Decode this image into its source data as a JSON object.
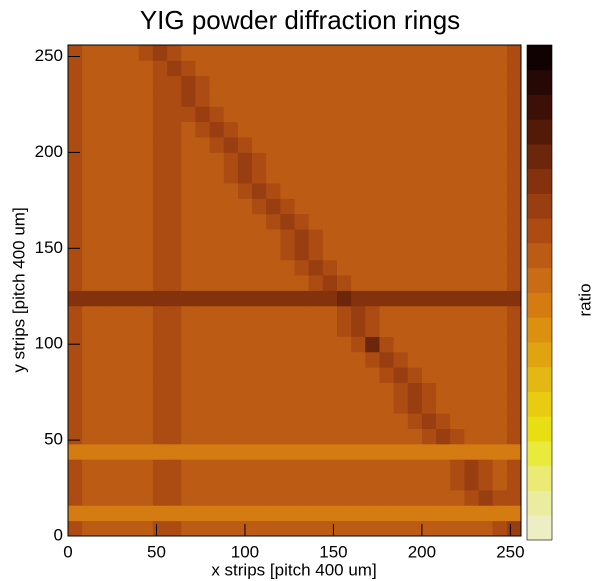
{
  "chart_data": {
    "type": "heatmap",
    "title": "YIG powder diffraction rings",
    "xlabel": "x strips [pitch 400 um]",
    "ylabel": "y strips [pitch 400 um]",
    "zlabel": "ratio",
    "xlim": [
      0,
      256
    ],
    "ylim": [
      0,
      256
    ],
    "xticks": [
      0,
      50,
      100,
      150,
      200,
      250
    ],
    "yticks": [
      0,
      50,
      100,
      150,
      200,
      250
    ],
    "xbins": [
      0,
      8,
      16,
      24,
      32,
      40,
      48,
      56,
      64,
      72,
      80,
      88,
      96,
      104,
      112,
      120,
      128,
      136,
      144,
      152,
      160,
      168,
      176,
      184,
      192,
      200,
      208,
      216,
      224,
      232,
      240,
      248,
      256
    ],
    "ybins": [
      0,
      8,
      16,
      24,
      32,
      40,
      48,
      56,
      64,
      72,
      80,
      88,
      96,
      104,
      112,
      120,
      128,
      136,
      144,
      152,
      160,
      168,
      176,
      184,
      192,
      200,
      208,
      216,
      224,
      232,
      240,
      248,
      256
    ],
    "colorscale": [
      "#eeeec4",
      "#ececa0",
      "#eaea74",
      "#eaea3c",
      "#e8de14",
      "#e8cc12",
      "#e4b812",
      "#e0a410",
      "#dc9010",
      "#d47c12",
      "#c86c16",
      "#bc5c14",
      "#ac4c12",
      "#983e10",
      "#84320e",
      "#6c260c",
      "#541a08",
      "#3c1006",
      "#260804",
      "#100202"
    ],
    "z": [
      [
        12,
        11,
        11,
        11,
        11,
        11,
        12,
        12,
        11,
        11,
        11,
        11,
        11,
        11,
        11,
        11,
        11,
        11,
        11,
        11,
        11,
        11,
        11,
        11,
        11,
        11,
        11,
        11,
        11,
        11,
        12,
        13
      ],
      [
        9,
        9,
        9,
        9,
        9,
        9,
        9,
        9,
        9,
        9,
        9,
        9,
        9,
        9,
        9,
        9,
        9,
        9,
        9,
        9,
        9,
        9,
        9,
        9,
        9,
        9,
        9,
        9,
        9,
        9,
        9,
        9
      ],
      [
        12,
        11,
        11,
        11,
        11,
        11,
        12,
        12,
        11,
        11,
        11,
        11,
        11,
        11,
        11,
        11,
        11,
        11,
        11,
        11,
        11,
        11,
        11,
        11,
        11,
        11,
        11,
        11,
        12,
        13,
        12,
        12
      ],
      [
        12,
        11,
        11,
        11,
        11,
        11,
        12,
        12,
        11,
        11,
        11,
        11,
        11,
        11,
        11,
        11,
        11,
        11,
        11,
        11,
        11,
        11,
        11,
        11,
        11,
        11,
        11,
        12,
        13,
        12,
        11,
        12
      ],
      [
        12,
        11,
        11,
        11,
        11,
        11,
        12,
        12,
        11,
        11,
        11,
        11,
        11,
        11,
        11,
        11,
        11,
        11,
        11,
        11,
        11,
        11,
        11,
        11,
        11,
        11,
        11,
        12,
        13,
        12,
        11,
        12
      ],
      [
        9,
        9,
        9,
        9,
        9,
        9,
        9,
        9,
        9,
        9,
        9,
        9,
        9,
        9,
        9,
        9,
        9,
        9,
        9,
        9,
        9,
        9,
        9,
        9,
        9,
        9,
        9,
        9,
        9,
        9,
        9,
        9
      ],
      [
        12,
        11,
        11,
        11,
        11,
        11,
        12,
        12,
        11,
        11,
        11,
        11,
        11,
        11,
        11,
        11,
        11,
        11,
        11,
        11,
        11,
        11,
        11,
        11,
        11,
        12,
        13,
        12,
        11,
        11,
        11,
        12
      ],
      [
        12,
        11,
        11,
        11,
        11,
        11,
        12,
        12,
        11,
        11,
        11,
        11,
        11,
        11,
        11,
        11,
        11,
        11,
        11,
        11,
        11,
        11,
        11,
        11,
        12,
        13,
        12,
        11,
        11,
        11,
        11,
        12
      ],
      [
        12,
        11,
        11,
        11,
        11,
        11,
        12,
        12,
        11,
        11,
        11,
        11,
        11,
        11,
        11,
        11,
        11,
        11,
        11,
        11,
        11,
        11,
        11,
        12,
        13,
        12,
        11,
        11,
        11,
        11,
        11,
        12
      ],
      [
        12,
        11,
        11,
        11,
        11,
        11,
        12,
        12,
        11,
        11,
        11,
        11,
        11,
        11,
        11,
        11,
        11,
        11,
        11,
        11,
        11,
        11,
        11,
        12,
        13,
        12,
        11,
        11,
        11,
        11,
        11,
        12
      ],
      [
        12,
        11,
        11,
        11,
        11,
        11,
        12,
        12,
        11,
        11,
        11,
        11,
        11,
        11,
        11,
        11,
        11,
        11,
        11,
        11,
        11,
        11,
        12,
        13,
        12,
        11,
        11,
        11,
        11,
        11,
        11,
        12
      ],
      [
        12,
        11,
        11,
        11,
        11,
        11,
        12,
        12,
        11,
        11,
        11,
        11,
        11,
        11,
        11,
        11,
        11,
        11,
        11,
        11,
        11,
        12,
        13,
        12,
        11,
        11,
        11,
        11,
        11,
        11,
        11,
        12
      ],
      [
        12,
        11,
        11,
        11,
        11,
        11,
        12,
        12,
        11,
        11,
        11,
        11,
        11,
        11,
        11,
        11,
        11,
        11,
        11,
        11,
        12,
        15,
        12,
        11,
        11,
        11,
        11,
        11,
        11,
        11,
        11,
        12
      ],
      [
        12,
        11,
        11,
        11,
        11,
        11,
        12,
        12,
        11,
        11,
        11,
        11,
        11,
        11,
        11,
        11,
        11,
        11,
        11,
        12,
        13,
        12,
        11,
        11,
        11,
        11,
        11,
        11,
        11,
        11,
        11,
        12
      ],
      [
        12,
        11,
        11,
        11,
        11,
        11,
        12,
        12,
        11,
        11,
        11,
        11,
        11,
        11,
        11,
        11,
        11,
        11,
        11,
        12,
        13,
        12,
        11,
        11,
        11,
        11,
        11,
        11,
        11,
        11,
        11,
        12
      ],
      [
        14,
        14,
        14,
        14,
        14,
        14,
        14,
        14,
        14,
        14,
        14,
        14,
        14,
        14,
        14,
        14,
        14,
        14,
        14,
        15,
        14,
        14,
        14,
        14,
        14,
        14,
        14,
        14,
        14,
        14,
        14,
        14
      ],
      [
        12,
        11,
        11,
        11,
        11,
        11,
        12,
        12,
        11,
        11,
        11,
        11,
        11,
        11,
        11,
        11,
        11,
        12,
        13,
        12,
        11,
        11,
        11,
        11,
        11,
        11,
        11,
        11,
        11,
        11,
        11,
        12
      ],
      [
        12,
        11,
        11,
        11,
        11,
        11,
        12,
        12,
        11,
        11,
        11,
        11,
        11,
        11,
        11,
        11,
        12,
        13,
        12,
        11,
        11,
        11,
        11,
        11,
        11,
        11,
        11,
        11,
        11,
        11,
        11,
        12
      ],
      [
        12,
        11,
        11,
        11,
        11,
        11,
        12,
        12,
        11,
        11,
        11,
        11,
        11,
        11,
        11,
        12,
        13,
        12,
        11,
        11,
        11,
        11,
        11,
        11,
        11,
        11,
        11,
        11,
        11,
        11,
        11,
        12
      ],
      [
        12,
        11,
        11,
        11,
        11,
        11,
        12,
        12,
        11,
        11,
        11,
        11,
        11,
        11,
        11,
        12,
        13,
        12,
        11,
        11,
        11,
        11,
        11,
        11,
        11,
        11,
        11,
        11,
        11,
        11,
        11,
        12
      ],
      [
        12,
        11,
        11,
        11,
        11,
        11,
        12,
        12,
        11,
        11,
        11,
        11,
        11,
        11,
        12,
        13,
        12,
        11,
        11,
        11,
        11,
        11,
        11,
        11,
        11,
        11,
        11,
        11,
        11,
        11,
        11,
        12
      ],
      [
        12,
        11,
        11,
        11,
        11,
        11,
        12,
        12,
        11,
        11,
        11,
        11,
        11,
        12,
        13,
        12,
        11,
        11,
        11,
        11,
        11,
        11,
        11,
        11,
        11,
        11,
        11,
        11,
        11,
        11,
        11,
        12
      ],
      [
        12,
        11,
        11,
        11,
        11,
        11,
        12,
        12,
        11,
        11,
        11,
        11,
        12,
        13,
        12,
        11,
        11,
        11,
        11,
        11,
        11,
        11,
        11,
        11,
        11,
        11,
        11,
        11,
        11,
        11,
        11,
        12
      ],
      [
        12,
        11,
        11,
        11,
        11,
        11,
        12,
        12,
        11,
        11,
        11,
        12,
        13,
        12,
        11,
        11,
        11,
        11,
        11,
        11,
        11,
        11,
        11,
        11,
        11,
        11,
        11,
        11,
        11,
        11,
        11,
        12
      ],
      [
        12,
        11,
        11,
        11,
        11,
        11,
        12,
        12,
        11,
        11,
        11,
        12,
        13,
        12,
        11,
        11,
        11,
        11,
        11,
        11,
        11,
        11,
        11,
        11,
        11,
        11,
        11,
        11,
        11,
        11,
        11,
        12
      ],
      [
        12,
        11,
        11,
        11,
        11,
        11,
        12,
        12,
        11,
        11,
        12,
        13,
        12,
        11,
        11,
        11,
        11,
        11,
        11,
        11,
        11,
        11,
        11,
        11,
        11,
        11,
        11,
        11,
        11,
        11,
        11,
        12
      ],
      [
        12,
        11,
        11,
        11,
        11,
        11,
        12,
        12,
        11,
        12,
        13,
        12,
        11,
        11,
        11,
        11,
        11,
        11,
        11,
        11,
        11,
        11,
        11,
        11,
        11,
        11,
        11,
        11,
        11,
        11,
        11,
        12
      ],
      [
        12,
        11,
        11,
        11,
        11,
        11,
        12,
        12,
        12,
        13,
        12,
        11,
        11,
        11,
        11,
        11,
        11,
        11,
        11,
        11,
        11,
        11,
        11,
        11,
        11,
        11,
        11,
        11,
        11,
        11,
        11,
        12
      ],
      [
        12,
        11,
        11,
        11,
        11,
        11,
        12,
        12,
        13,
        12,
        11,
        11,
        11,
        11,
        11,
        11,
        11,
        11,
        11,
        11,
        11,
        11,
        11,
        11,
        11,
        11,
        11,
        11,
        11,
        11,
        11,
        12
      ],
      [
        12,
        11,
        11,
        11,
        11,
        11,
        12,
        12,
        13,
        12,
        11,
        11,
        11,
        11,
        11,
        11,
        11,
        11,
        11,
        11,
        11,
        11,
        11,
        11,
        11,
        11,
        11,
        11,
        11,
        11,
        11,
        12
      ],
      [
        12,
        11,
        11,
        11,
        11,
        11,
        12,
        13,
        12,
        11,
        11,
        11,
        11,
        11,
        11,
        11,
        11,
        11,
        11,
        11,
        11,
        11,
        11,
        11,
        11,
        11,
        11,
        11,
        11,
        11,
        11,
        12
      ],
      [
        12,
        11,
        11,
        11,
        11,
        12,
        13,
        12,
        11,
        11,
        11,
        11,
        11,
        11,
        11,
        11,
        11,
        11,
        11,
        11,
        11,
        11,
        11,
        11,
        11,
        11,
        11,
        11,
        11,
        11,
        11,
        12
      ]
    ]
  }
}
